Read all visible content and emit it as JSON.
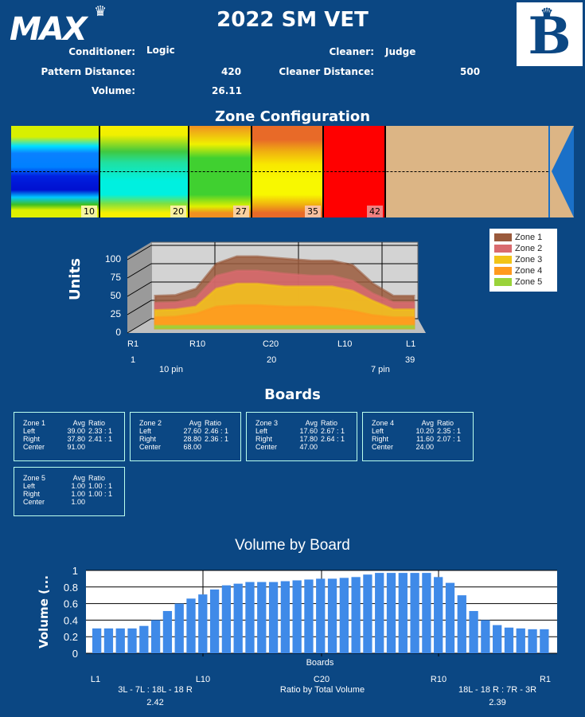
{
  "header": {
    "brand": "MAX",
    "title": "2022 SM VET",
    "b_logo": "B"
  },
  "info": {
    "conditioner_label": "Conditioner:",
    "conditioner": "Logic",
    "cleaner_label": "Cleaner:",
    "cleaner": "Judge",
    "pattern_distance_label": "Pattern Distance:",
    "pattern_distance": "420",
    "cleaner_distance_label": "Cleaner Distance:",
    "cleaner_distance": "500",
    "volume_label": "Volume:",
    "volume": "26.11"
  },
  "zone_config": {
    "title": "Zone Configuration",
    "markers": [
      "10",
      "20",
      "27",
      "35",
      "42"
    ]
  },
  "units_chart": {
    "ylabel": "Units",
    "yticks": [
      "0",
      "25",
      "50",
      "75",
      "100"
    ],
    "xticks": [
      "R1",
      "R10",
      "C20",
      "L10",
      "L1"
    ],
    "numbers": [
      "1",
      "20",
      "39"
    ],
    "pins": [
      "10 pin",
      "7 pin"
    ],
    "legend": [
      "Zone 1",
      "Zone 2",
      "Zone 3",
      "Zone 4",
      "Zone 5"
    ],
    "colors": [
      "#9a5a3c",
      "#d96a6e",
      "#f2c418",
      "#ff9a1e",
      "#9ad33a"
    ]
  },
  "chart_data": [
    {
      "type": "area",
      "title": "",
      "ylabel": "Units",
      "ylim": [
        0,
        100
      ],
      "x": [
        1,
        4,
        7,
        10,
        13,
        16,
        20,
        24,
        27,
        30,
        33,
        36,
        39
      ],
      "series": [
        {
          "name": "Zone 1",
          "values": [
            45,
            46,
            55,
            90,
            100,
            100,
            97,
            94,
            94,
            88,
            62,
            45,
            45
          ]
        },
        {
          "name": "Zone 2",
          "values": [
            35,
            36,
            42,
            73,
            80,
            80,
            76,
            73,
            73,
            66,
            48,
            36,
            36
          ]
        },
        {
          "name": "Zone 3",
          "values": [
            25,
            26,
            30,
            55,
            62,
            62,
            58,
            58,
            58,
            52,
            38,
            26,
            26
          ]
        },
        {
          "name": "Zone 4",
          "values": [
            15,
            16,
            20,
            30,
            32,
            32,
            30,
            30,
            28,
            24,
            18,
            15,
            15
          ]
        },
        {
          "name": "Zone 5",
          "values": [
            3,
            3,
            3,
            3,
            3,
            3,
            3,
            3,
            3,
            3,
            3,
            3,
            3
          ]
        }
      ]
    },
    {
      "type": "bar",
      "title": "Volume by Board",
      "xlabel": "Boards",
      "ylabel": "Volume (...",
      "ylim": [
        0,
        1
      ],
      "yticks": [
        "0",
        "0.2",
        "0.4",
        "0.6",
        "0.8",
        "1"
      ],
      "xticks": [
        "L1",
        "L10",
        "C20",
        "R10",
        "R1"
      ],
      "values": [
        0.3,
        0.3,
        0.3,
        0.3,
        0.33,
        0.4,
        0.51,
        0.6,
        0.66,
        0.71,
        0.77,
        0.82,
        0.84,
        0.86,
        0.86,
        0.86,
        0.87,
        0.88,
        0.89,
        0.9,
        0.9,
        0.91,
        0.92,
        0.95,
        0.97,
        0.97,
        0.97,
        0.97,
        0.97,
        0.92,
        0.85,
        0.7,
        0.51,
        0.4,
        0.34,
        0.31,
        0.3,
        0.29,
        0.29
      ],
      "color": "#3f8ae8"
    }
  ],
  "boards": {
    "title": "Boards",
    "col_avg": "Avg",
    "col_ratio": "Ratio",
    "left": "Left",
    "right": "Right",
    "center": "Center",
    "zones": [
      {
        "name": "Zone 1",
        "left_avg": "39.00",
        "left_ratio": "2.33 : 1",
        "right_avg": "37.80",
        "right_ratio": "2.41 : 1",
        "center": "91.00"
      },
      {
        "name": "Zone 2",
        "left_avg": "27.60",
        "left_ratio": "2.46 : 1",
        "right_avg": "28.80",
        "right_ratio": "2.36 : 1",
        "center": "68.00"
      },
      {
        "name": "Zone 3",
        "left_avg": "17.60",
        "left_ratio": "2.67 : 1",
        "right_avg": "17.80",
        "right_ratio": "2.64 : 1",
        "center": "47.00"
      },
      {
        "name": "Zone 4",
        "left_avg": "10.20",
        "left_ratio": "2.35 : 1",
        "right_avg": "11.60",
        "right_ratio": "2.07 : 1",
        "center": "24.00"
      },
      {
        "name": "Zone 5",
        "left_avg": "1.00",
        "left_ratio": "1.00 : 1",
        "right_avg": "1.00",
        "right_ratio": "1.00 : 1",
        "center": "1.00"
      }
    ]
  },
  "ratios": {
    "left_label": "3L - 7L : 18L - 18 R",
    "left_value": "2.42",
    "center_label": "Ratio by Total Volume",
    "right_label": "18L - 18 R : 7R - 3R",
    "right_value": "2.39"
  }
}
